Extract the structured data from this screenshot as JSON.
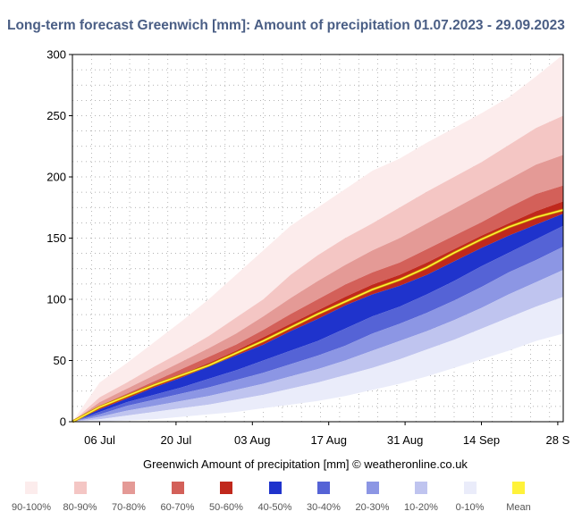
{
  "title": "Long-term forecast Greenwich [mm]: Amount of precipitation 01.07.2023 - 29.09.2023",
  "credit": "Greenwich  Amount of precipitation [mm]   © weatheronline.co.uk",
  "chart_data": {
    "type": "area",
    "x_axis": {
      "unit": "date",
      "start": "2023-07-01",
      "end": "2023-09-29",
      "tick_labels": [
        "06 Jul",
        "20 Jul",
        "03 Aug",
        "17 Aug",
        "31 Aug",
        "14 Sep",
        "28 S"
      ],
      "tick_days": [
        5,
        19,
        33,
        47,
        61,
        75,
        89
      ]
    },
    "y_axis": {
      "ylim": [
        0,
        300
      ],
      "ticks": [
        0,
        50,
        100,
        150,
        200,
        250,
        300
      ]
    },
    "grid": true,
    "days": [
      0,
      5,
      10,
      15,
      20,
      25,
      30,
      35,
      40,
      45,
      50,
      55,
      60,
      65,
      70,
      75,
      80,
      85,
      90
    ],
    "bands": [
      {
        "name": "90-100%",
        "color": "#fcecec",
        "lower": [
          0,
          20,
          32,
          45,
          57,
          70,
          85,
          100,
          120,
          136,
          150,
          162,
          175,
          188,
          200,
          212,
          226,
          240,
          250
        ],
        "upper": [
          0,
          32,
          48,
          65,
          82,
          100,
          120,
          140,
          160,
          175,
          190,
          205,
          215,
          228,
          240,
          252,
          265,
          282,
          300
        ]
      },
      {
        "name": "80-90%",
        "color": "#f4c6c4",
        "lower": [
          0,
          16,
          27,
          38,
          49,
          60,
          72,
          86,
          101,
          115,
          128,
          140,
          150,
          162,
          174,
          186,
          198,
          210,
          218
        ],
        "upper": [
          0,
          20,
          32,
          45,
          57,
          70,
          85,
          100,
          120,
          136,
          150,
          162,
          175,
          188,
          200,
          212,
          226,
          240,
          250
        ]
      },
      {
        "name": "70-80%",
        "color": "#e49a96",
        "lower": [
          0,
          13,
          23,
          33,
          43,
          53,
          63,
          75,
          88,
          100,
          112,
          122,
          130,
          141,
          152,
          163,
          175,
          186,
          193
        ],
        "upper": [
          0,
          16,
          27,
          38,
          49,
          60,
          72,
          86,
          101,
          115,
          128,
          140,
          150,
          162,
          174,
          186,
          198,
          210,
          218
        ]
      },
      {
        "name": "60-70%",
        "color": "#d36059",
        "lower": [
          0,
          11,
          21,
          30,
          39,
          48,
          58,
          69,
          80,
          91,
          102,
          112,
          120,
          130,
          141,
          152,
          162,
          172,
          180
        ],
        "upper": [
          0,
          13,
          23,
          33,
          43,
          53,
          63,
          75,
          88,
          100,
          112,
          122,
          130,
          141,
          152,
          163,
          175,
          186,
          193
        ]
      },
      {
        "name": "50-60%",
        "color": "#c0281c",
        "lower": [
          0,
          10,
          19,
          28,
          36,
          45,
          54,
          63,
          74,
          84,
          95,
          104,
          111,
          120,
          131,
          142,
          152,
          161,
          170
        ],
        "upper": [
          0,
          11,
          21,
          30,
          39,
          48,
          58,
          69,
          80,
          91,
          102,
          112,
          120,
          130,
          141,
          152,
          162,
          172,
          180
        ]
      },
      {
        "name": "40-50%",
        "color": "#1f33cc",
        "lower": [
          0,
          8,
          16,
          22,
          28,
          35,
          42,
          50,
          58,
          66,
          76,
          86,
          94,
          104,
          115,
          127,
          138,
          149,
          160
        ],
        "upper": [
          0,
          10,
          19,
          28,
          36,
          45,
          54,
          63,
          74,
          84,
          95,
          104,
          111,
          120,
          131,
          142,
          152,
          161,
          170
        ]
      },
      {
        "name": "30-40%",
        "color": "#5563d6",
        "lower": [
          0,
          6,
          13,
          18,
          23,
          28,
          34,
          40,
          47,
          54,
          62,
          72,
          80,
          89,
          99,
          110,
          122,
          132,
          143
        ],
        "upper": [
          0,
          8,
          16,
          22,
          28,
          35,
          42,
          50,
          58,
          66,
          76,
          86,
          94,
          104,
          115,
          127,
          138,
          149,
          160
        ]
      },
      {
        "name": "20-30%",
        "color": "#8c96e4",
        "lower": [
          0,
          4,
          9,
          13,
          17,
          21,
          26,
          31,
          37,
          43,
          50,
          58,
          66,
          74,
          83,
          93,
          104,
          114,
          124
        ],
        "upper": [
          0,
          6,
          13,
          18,
          23,
          28,
          34,
          40,
          47,
          54,
          62,
          72,
          80,
          89,
          99,
          110,
          122,
          132,
          143
        ]
      },
      {
        "name": "10-20%",
        "color": "#bfc4ef",
        "lower": [
          0,
          2,
          5,
          8,
          11,
          14,
          18,
          22,
          27,
          32,
          38,
          44,
          51,
          59,
          67,
          76,
          85,
          94,
          102
        ],
        "upper": [
          0,
          4,
          9,
          13,
          17,
          21,
          26,
          31,
          37,
          43,
          50,
          58,
          66,
          74,
          83,
          93,
          104,
          114,
          124
        ]
      },
      {
        "name": "0-10%",
        "color": "#eaecfa",
        "lower": [
          0,
          0,
          1,
          2,
          4,
          6,
          8,
          11,
          14,
          17,
          21,
          26,
          31,
          37,
          44,
          51,
          58,
          66,
          72
        ],
        "upper": [
          0,
          2,
          5,
          8,
          11,
          14,
          18,
          22,
          27,
          32,
          38,
          44,
          51,
          59,
          67,
          76,
          85,
          94,
          102
        ]
      }
    ],
    "mean": {
      "name": "Mean",
      "color": "#fff23a",
      "values": [
        0,
        12,
        21,
        30,
        38,
        46,
        56,
        66,
        77,
        88,
        98,
        108,
        116,
        126,
        138,
        149,
        159,
        167,
        173
      ]
    },
    "legend": [
      {
        "label": "90-100%",
        "color": "#fcecec"
      },
      {
        "label": "80-90%",
        "color": "#f4c6c4"
      },
      {
        "label": "70-80%",
        "color": "#e49a96"
      },
      {
        "label": "60-70%",
        "color": "#d36059"
      },
      {
        "label": "50-60%",
        "color": "#c0281c"
      },
      {
        "label": "40-50%",
        "color": "#1f33cc"
      },
      {
        "label": "30-40%",
        "color": "#5563d6"
      },
      {
        "label": "20-30%",
        "color": "#8c96e4"
      },
      {
        "label": "10-20%",
        "color": "#bfc4ef"
      },
      {
        "label": "0-10%",
        "color": "#eaecfa"
      },
      {
        "label": "Mean",
        "color": "#fff23a"
      }
    ],
    "legend_position": "bottom"
  }
}
